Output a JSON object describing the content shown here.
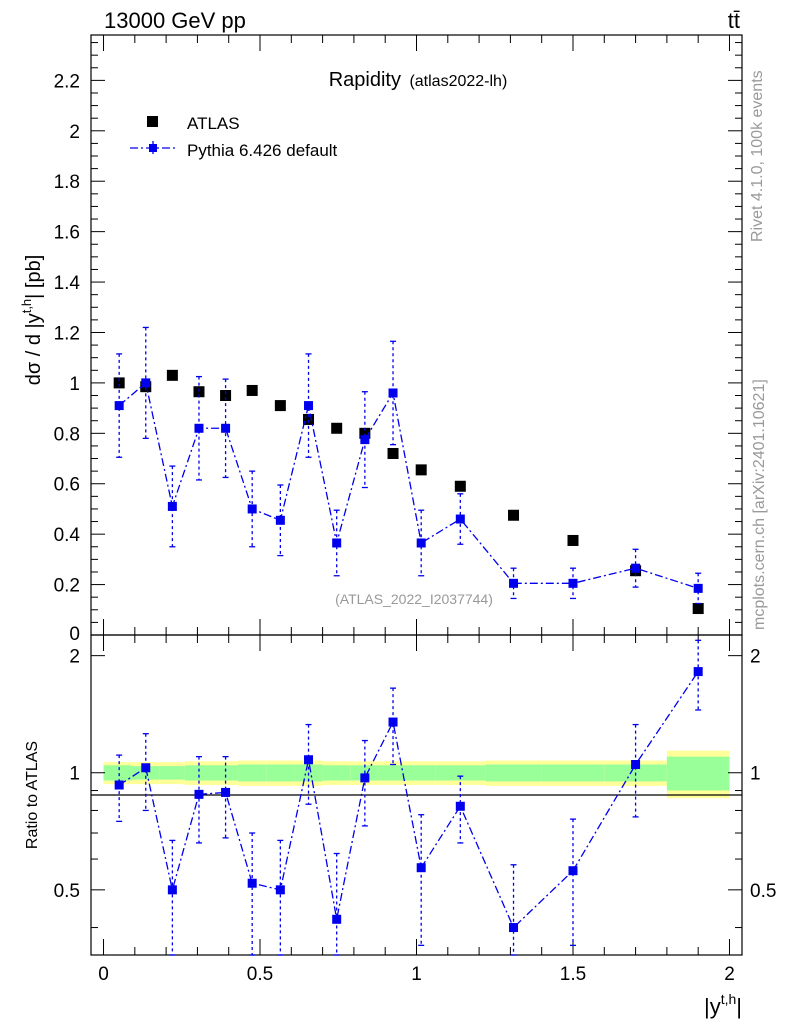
{
  "header": {
    "left": "13000 GeV pp",
    "right": "tt̄"
  },
  "side_labels": {
    "rivet": "Rivet 4.1.0,  100k events",
    "mcplots": "mcplots.cern.ch [arXiv:2401.10621]"
  },
  "chart_data": [
    {
      "type": "scatter",
      "title": "Rapidity",
      "subtitle": "(atlas2022-lh)",
      "watermark": "(ATLAS_2022_I2037744)",
      "ylabel": "dσ / d |y^{t,h}| [pb]",
      "xlabel": "|y^{t,h}|",
      "xlim": [
        -0.04,
        2.04
      ],
      "ylim": [
        0,
        2.38
      ],
      "yticks": [
        "0.2",
        "0.4",
        "0.6",
        "0.8",
        "1",
        "1.2",
        "1.4",
        "1.6",
        "1.8",
        "2",
        "2.2"
      ],
      "legend": {
        "position": "top-left",
        "entries": [
          "ATLAS",
          "Pythia 6.426 default"
        ]
      },
      "series": [
        {
          "name": "ATLAS",
          "color": "#000000",
          "x": [
            0.05,
            0.135,
            0.22,
            0.305,
            0.39,
            0.475,
            0.565,
            0.655,
            0.745,
            0.835,
            0.925,
            1.015,
            1.14,
            1.31,
            1.5,
            1.7,
            1.9
          ],
          "y": [
            1.0,
            0.985,
            1.03,
            0.965,
            0.95,
            0.97,
            0.91,
            0.855,
            0.82,
            0.8,
            0.72,
            0.655,
            0.59,
            0.475,
            0.375,
            0.255,
            0.105
          ]
        },
        {
          "name": "Pythia 6.426 default",
          "color": "#0000ee",
          "x": [
            0.05,
            0.135,
            0.22,
            0.305,
            0.39,
            0.475,
            0.565,
            0.655,
            0.745,
            0.835,
            0.925,
            1.015,
            1.14,
            1.31,
            1.5,
            1.7,
            1.9
          ],
          "y": [
            0.91,
            1.0,
            0.51,
            0.82,
            0.82,
            0.5,
            0.455,
            0.91,
            0.365,
            0.775,
            0.96,
            0.365,
            0.46,
            0.205,
            0.205,
            0.265,
            0.185
          ],
          "err": [
            0.205,
            0.22,
            0.16,
            0.205,
            0.195,
            0.15,
            0.14,
            0.205,
            0.13,
            0.19,
            0.205,
            0.13,
            0.1,
            0.06,
            0.06,
            0.075,
            0.06
          ]
        }
      ]
    },
    {
      "type": "scatter",
      "ylabel": "Ratio to ATLAS",
      "xlabel": "|y^{t,h}|",
      "xlim": [
        -0.04,
        2.04
      ],
      "ylim": [
        0.34,
        2.26
      ],
      "yticks": [
        "0.5",
        "1",
        "2"
      ],
      "xticks": [
        "0",
        "0.5",
        "1",
        "1.5",
        "2"
      ],
      "bins": [
        0.0,
        0.09,
        0.18,
        0.26,
        0.35,
        0.43,
        0.52,
        0.61,
        0.7,
        0.79,
        0.88,
        0.97,
        1.06,
        1.22,
        1.4,
        1.6,
        1.8,
        2.0
      ],
      "band_inner": [
        0.045,
        0.04,
        0.04,
        0.045,
        0.045,
        0.05,
        0.05,
        0.05,
        0.045,
        0.045,
        0.045,
        0.045,
        0.045,
        0.05,
        0.05,
        0.05,
        0.1
      ],
      "band_outer": [
        0.065,
        0.065,
        0.065,
        0.07,
        0.07,
        0.075,
        0.075,
        0.075,
        0.07,
        0.07,
        0.07,
        0.07,
        0.07,
        0.075,
        0.075,
        0.075,
        0.14
      ],
      "series": [
        {
          "name": "Pythia 6.426 default",
          "color": "#0000ee",
          "x": [
            0.05,
            0.135,
            0.22,
            0.305,
            0.39,
            0.475,
            0.565,
            0.655,
            0.745,
            0.835,
            0.925,
            1.015,
            1.14,
            1.31,
            1.5,
            1.7,
            1.9
          ],
          "y": [
            0.93,
            1.03,
            0.5,
            0.88,
            0.89,
            0.52,
            0.5,
            1.08,
            0.42,
            0.97,
            1.35,
            0.57,
            0.82,
            0.4,
            0.56,
            1.05,
            1.82
          ],
          "err": [
            0.18,
            0.23,
            0.17,
            0.22,
            0.21,
            0.18,
            0.17,
            0.25,
            0.2,
            0.24,
            0.3,
            0.21,
            0.16,
            0.18,
            0.2,
            0.28,
            0.37
          ]
        }
      ]
    }
  ]
}
